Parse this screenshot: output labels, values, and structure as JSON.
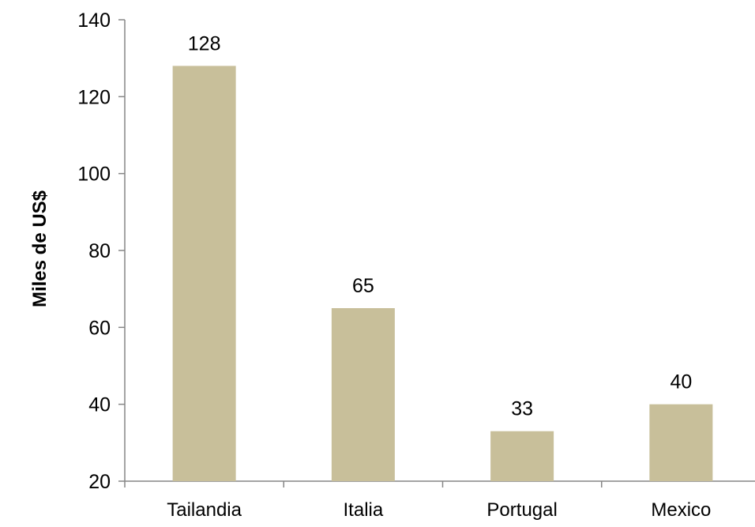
{
  "chart_data": {
    "type": "bar",
    "title": "",
    "xlabel": "",
    "ylabel": "Miles de US$",
    "categories": [
      "Tailandia",
      "Italia",
      "Portugal",
      "Mexico"
    ],
    "values": [
      128,
      65,
      33,
      40
    ],
    "data_labels": [
      "128",
      "65",
      "33",
      "40"
    ],
    "ylim": [
      20,
      140
    ],
    "yticks": [
      20,
      40,
      60,
      80,
      100,
      120,
      140
    ],
    "grid": false,
    "legend": "none",
    "bar_color": "#c8bf9a"
  }
}
